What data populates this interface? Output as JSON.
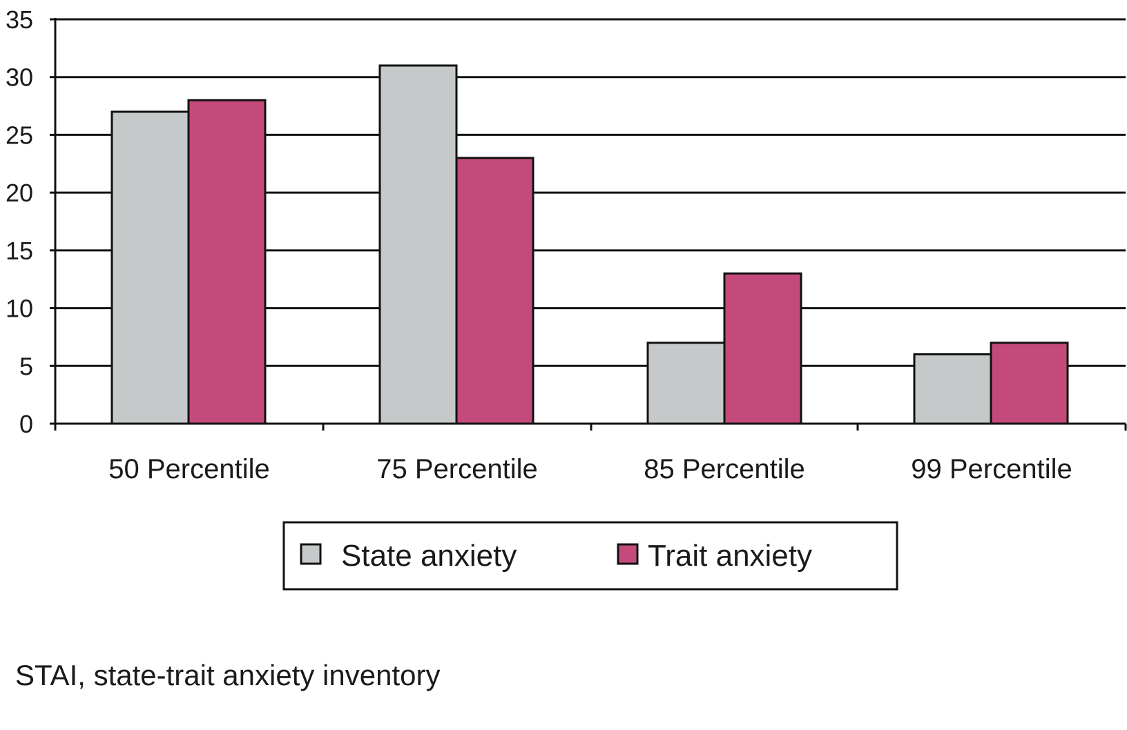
{
  "chart_data": {
    "type": "bar",
    "categories": [
      "50 Percentile",
      "75 Percentile",
      "85 Percentile",
      "99 Percentile"
    ],
    "series": [
      {
        "name": "State anxiety",
        "values": [
          27,
          31,
          7,
          6
        ],
        "color": "#c6c9ca"
      },
      {
        "name": "Trait anxiety",
        "values": [
          28,
          23,
          13,
          7
        ],
        "color": "#c44a7c"
      }
    ],
    "ylim": [
      0,
      35
    ],
    "yticks": [
      0,
      5,
      10,
      15,
      20,
      25,
      30,
      35
    ],
    "grid": true,
    "legend": "bottom-center",
    "title": "",
    "xlabel": "",
    "ylabel": ""
  },
  "footnote": "STAI, state-trait anxiety inventory"
}
